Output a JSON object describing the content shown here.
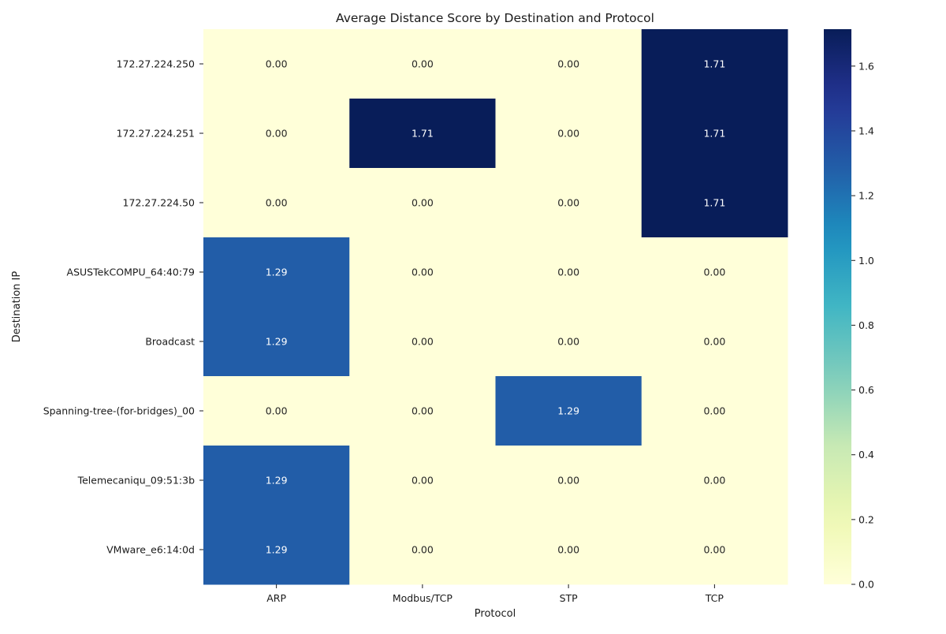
{
  "chart_data": {
    "type": "heatmap",
    "title": "Average Distance Score by Destination and Protocol",
    "xlabel": "Protocol",
    "ylabel": "Destination IP",
    "x_categories": [
      "ARP",
      "Modbus/TCP",
      "STP",
      "TCP"
    ],
    "y_categories": [
      "172.27.224.250",
      "172.27.224.251",
      "172.27.224.50",
      "ASUSTekCOMPU_64:40:79",
      "Broadcast",
      "Spanning-tree-(for-bridges)_00",
      "Telemecaniqu_09:51:3b",
      "VMware_e6:14:0d"
    ],
    "values": [
      [
        0.0,
        0.0,
        0.0,
        1.71
      ],
      [
        0.0,
        1.71,
        0.0,
        1.71
      ],
      [
        0.0,
        0.0,
        0.0,
        1.71
      ],
      [
        1.29,
        0.0,
        0.0,
        0.0
      ],
      [
        1.29,
        0.0,
        0.0,
        0.0
      ],
      [
        0.0,
        0.0,
        1.29,
        0.0
      ],
      [
        1.29,
        0.0,
        0.0,
        0.0
      ],
      [
        1.29,
        0.0,
        0.0,
        0.0
      ]
    ],
    "value_format": "0.00",
    "colormap": "YlGnBu",
    "colorbar": {
      "range": [
        0.0,
        1.714
      ],
      "ticks": [
        "0.0",
        "0.2",
        "0.4",
        "0.6",
        "0.8",
        "1.0",
        "1.2",
        "1.4",
        "1.6"
      ]
    },
    "colors": {
      "low": "#ffffd9",
      "high": "#081d58",
      "annotation_dark": "#262626",
      "annotation_light": "#ffffff"
    }
  }
}
